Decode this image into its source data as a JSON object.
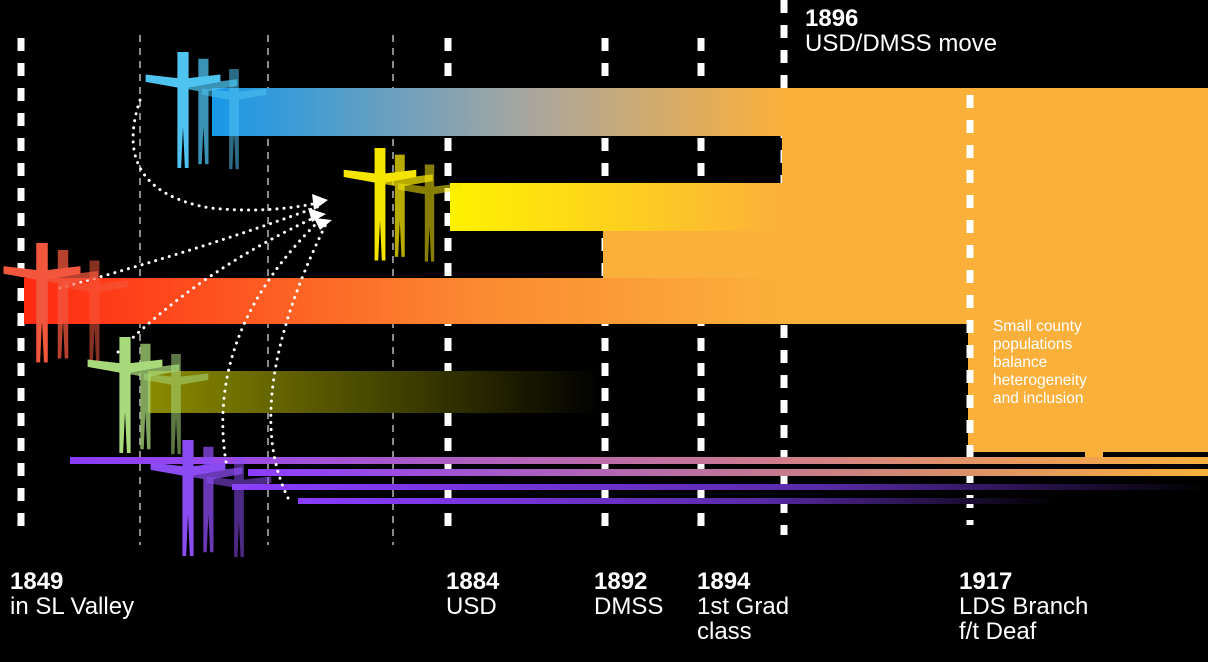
{
  "colors": {
    "background": "#000000",
    "orange": "#FBB03B",
    "blue": "#1EA0E6",
    "yellow": "#FFF200",
    "red": "#FF3A1A",
    "olive": "#8C8C00",
    "purple": "#8A3CFF",
    "figure_blue": "#4EC3F0",
    "figure_yellow": "#F5E400",
    "figure_red": "#F2573D",
    "figure_green": "#A8D97A",
    "figure_purple": "#8B4BF2"
  },
  "milestones": [
    {
      "year": "1849",
      "text": "in SL Valley"
    },
    {
      "year": "1884",
      "text": "USD"
    },
    {
      "year": "1892",
      "text": "DMSS"
    },
    {
      "year": "1894",
      "text": "1st Grad\nclass"
    },
    {
      "year": "1896",
      "text": "USD/DMSS move"
    },
    {
      "year": "1917",
      "text": "LDS Branch\nf/t Deaf"
    }
  ],
  "note": "Small county\npopulations\nbalance\nheterogeneity\nand inclusion",
  "icons": [
    "people-figure-icon"
  ]
}
